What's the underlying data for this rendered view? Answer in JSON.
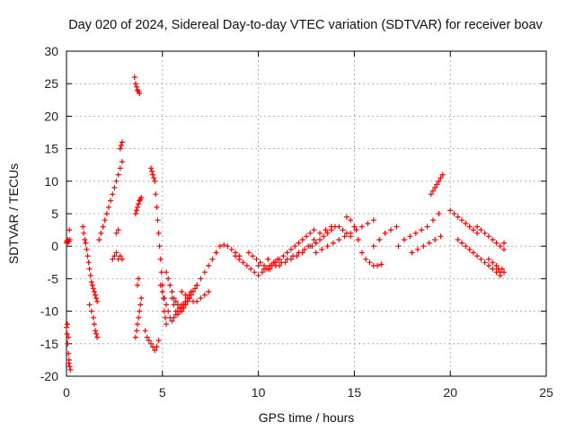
{
  "chart_data": {
    "type": "scatter",
    "title": "Day 020 of 2024, Sidereal Day-to-day VTEC variation (SDTVAR) for receiver boav",
    "xlabel": "GPS time / hours",
    "ylabel": "SDTVAR / TECUs",
    "xlim": [
      0,
      25
    ],
    "ylim": [
      -20,
      30
    ],
    "xticks": [
      0,
      5,
      10,
      15,
      20,
      25
    ],
    "yticks": [
      -20,
      -15,
      -10,
      -5,
      0,
      5,
      10,
      15,
      20,
      25,
      30
    ],
    "grid": true,
    "marker": "+",
    "color": "#ff0000",
    "series": [
      {
        "name": "boav",
        "x": [
          0.0,
          0.02,
          0.05,
          0.08,
          0.12,
          0.15,
          0.18,
          0.0,
          0.03,
          0.06,
          0.1,
          0.13,
          0.17,
          0.2,
          0.05,
          0.1,
          0.12,
          0.85,
          0.9,
          0.95,
          1.0,
          1.05,
          1.1,
          1.15,
          1.2,
          1.25,
          1.3,
          1.35,
          1.4,
          1.45,
          1.5,
          1.55,
          1.6,
          1.2,
          1.3,
          1.4,
          1.45,
          1.5,
          1.55,
          1.6,
          1.7,
          1.8,
          1.9,
          2.0,
          2.1,
          2.2,
          2.3,
          2.4,
          2.5,
          2.6,
          2.7,
          2.8,
          2.9,
          2.4,
          2.5,
          2.6,
          2.7,
          2.8,
          2.9,
          2.6,
          2.7,
          2.8,
          2.85,
          2.9,
          3.55,
          3.6,
          3.65,
          3.7,
          3.75,
          3.8,
          3.6,
          3.65,
          3.7,
          3.75,
          3.8,
          3.85,
          3.9,
          3.6,
          3.65,
          3.7,
          3.75,
          3.8,
          3.85,
          3.9,
          3.7,
          3.75,
          4.1,
          4.2,
          4.3,
          4.4,
          4.5,
          4.6,
          4.7,
          4.8,
          4.4,
          4.45,
          4.5,
          4.55,
          4.6,
          4.65,
          4.7,
          4.75,
          4.8,
          4.85,
          4.9,
          4.95,
          5.0,
          5.05,
          5.1,
          5.15,
          5.2,
          4.9,
          5.0,
          5.1,
          5.2,
          5.3,
          5.4,
          5.5,
          5.6,
          5.7,
          5.8,
          5.9,
          6.0,
          5.2,
          5.3,
          5.4,
          5.5,
          5.6,
          5.7,
          5.8,
          5.9,
          6.0,
          6.1,
          6.2,
          6.3,
          6.4,
          6.5,
          6.6,
          6.7,
          6.8,
          5.5,
          5.6,
          5.7,
          5.8,
          5.9,
          6.0,
          6.1,
          6.2,
          6.3,
          6.4,
          6.5,
          6.0,
          6.2,
          6.4,
          6.6,
          6.8,
          7.0,
          7.2,
          7.4,
          6.8,
          7.0,
          7.2,
          7.4,
          7.6,
          7.8,
          8.0,
          8.2,
          8.4,
          8.6,
          8.8,
          9.0,
          8.8,
          9.0,
          9.2,
          9.4,
          9.6,
          9.8,
          10.0,
          10.2,
          10.4,
          10.6,
          10.8,
          11.0,
          9.5,
          9.7,
          9.9,
          10.1,
          10.3,
          10.5,
          10.7,
          10.9,
          11.1,
          11.3,
          11.5,
          11.7,
          11.9,
          12.1,
          12.3,
          12.5,
          12.7,
          12.9,
          10.0,
          10.3,
          10.6,
          10.9,
          11.2,
          11.5,
          11.8,
          12.1,
          12.4,
          12.7,
          13.0,
          10.5,
          10.8,
          11.1,
          11.4,
          11.7,
          12.0,
          12.3,
          12.6,
          12.9,
          13.2,
          13.5,
          13.8,
          12.8,
          13.0,
          13.2,
          13.4,
          13.6,
          13.8,
          14.0,
          14.2,
          14.4,
          14.6,
          14.8,
          13.0,
          13.3,
          13.6,
          13.9,
          14.2,
          14.5,
          14.8,
          15.1,
          15.4,
          15.7,
          16.0,
          14.6,
          14.8,
          15.0,
          15.2,
          15.4,
          15.6,
          15.8,
          16.0,
          16.2,
          16.4,
          16.0,
          16.3,
          16.6,
          16.9,
          17.2,
          17.3,
          17.6,
          17.9,
          18.2,
          18.5,
          18.8,
          19.1,
          19.4,
          18.0,
          18.3,
          18.6,
          18.9,
          19.2,
          19.5,
          19.0,
          19.1,
          19.2,
          19.3,
          19.4,
          19.5,
          19.6,
          20.0,
          20.2,
          20.4,
          20.6,
          20.8,
          21.0,
          21.2,
          21.4,
          20.4,
          20.6,
          20.8,
          21.0,
          21.2,
          21.4,
          21.6,
          21.8,
          22.0,
          22.2,
          22.4,
          22.6,
          22.8,
          21.4,
          21.6,
          21.8,
          22.0,
          22.2,
          22.4,
          22.6,
          22.8,
          22.0,
          22.2,
          22.4,
          22.5,
          22.6,
          22.7,
          22.8
        ],
        "y": [
          0.5,
          0.8,
          0.6,
          1.0,
          0.7,
          2.5,
          1.0,
          -12.5,
          -13.5,
          -15,
          -16.5,
          -17.5,
          -18.5,
          -19,
          -12.0,
          -14.0,
          -18.0,
          3.0,
          2.0,
          1.0,
          0.5,
          -0.5,
          -1.5,
          -2.5,
          -3.5,
          -4.5,
          -5.5,
          -6.0,
          -6.5,
          -7.0,
          -7.5,
          -8.0,
          -8.5,
          -9,
          -10,
          -11,
          -12,
          -13,
          -13.5,
          -14,
          1,
          2,
          3,
          4,
          5,
          6,
          7,
          8,
          9,
          10,
          11,
          12,
          13,
          -2,
          -1.5,
          -1,
          -2,
          -1.5,
          -2,
          2,
          2.5,
          15,
          15.5,
          16,
          26,
          25,
          24.5,
          24,
          23.8,
          23.5,
          -14,
          -13,
          -12,
          -11,
          -10,
          -9,
          -8,
          5,
          5.5,
          6,
          6.5,
          7,
          7.2,
          7.5,
          -6,
          -5,
          -13,
          -14,
          -14.5,
          -15,
          -15.5,
          -16,
          -15.5,
          -14.5,
          12,
          11.5,
          11,
          10.5,
          10,
          8,
          6,
          4,
          2,
          0,
          -2,
          -4,
          -6,
          -8,
          -10,
          -11,
          -12,
          -6,
          -7,
          -8,
          -9,
          -10,
          -11,
          -11.5,
          -11,
          -10.5,
          -10,
          -9.5,
          -9,
          -4,
          -5,
          -6,
          -7,
          -8,
          -8.5,
          -9,
          -9.5,
          -10,
          -9.5,
          -9,
          -8.5,
          -8,
          -7.5,
          -7,
          -6.5,
          -6,
          -8,
          -9,
          -10,
          -10.5,
          -10,
          -9.5,
          -9,
          -8.5,
          -8,
          -7.5,
          -7,
          -7,
          -7.5,
          -8,
          -8.5,
          -8.5,
          -8,
          -7.5,
          -7,
          -6,
          -5,
          -4,
          -3,
          -2,
          -1,
          0,
          0.2,
          0,
          -0.5,
          -1,
          -1.5,
          -1.5,
          -2,
          -2.5,
          -3,
          -3.5,
          -4,
          -4.5,
          -4,
          -3.5,
          -3,
          -2.5,
          -2,
          -1,
          -1.5,
          -2,
          -2.5,
          -3,
          -3.5,
          -3,
          -2.5,
          -2,
          -1.5,
          -1,
          -0.5,
          0,
          0.5,
          1,
          1.5,
          2,
          2.5,
          -3,
          -3.5,
          -3.5,
          -3,
          -2.5,
          -2,
          -1.5,
          -1,
          -0.5,
          0,
          0.5,
          -2,
          -2.5,
          -3,
          -2.5,
          -2,
          -1.5,
          -1,
          0,
          1,
          2,
          2.5,
          3,
          0,
          0.5,
          1,
          1.5,
          2,
          2.5,
          3,
          3,
          2.5,
          2,
          1.5,
          -1,
          -0.5,
          0,
          0.5,
          1,
          1.5,
          2,
          2.5,
          3,
          3.5,
          4,
          4.5,
          4,
          3,
          1,
          -1,
          -2,
          -2.5,
          -3,
          -3,
          -2.8,
          0,
          1,
          2,
          2.5,
          3,
          0,
          1,
          1.5,
          2,
          2.5,
          3,
          4,
          5,
          -1,
          -0.5,
          0,
          0.5,
          1,
          1.5,
          8,
          8.5,
          9,
          9.5,
          10,
          10.5,
          11,
          5.5,
          5,
          4.5,
          4,
          3.5,
          3,
          2.5,
          2,
          1,
          0.5,
          0,
          -0.5,
          -1,
          -1.5,
          -2,
          -2.5,
          -3,
          -3.5,
          -4,
          -4.5,
          -4,
          3,
          2.5,
          2,
          1.5,
          1,
          0.5,
          0,
          -0.5,
          -2,
          -2.5,
          -3,
          -3.5,
          -4,
          -3.5,
          0.5
        ]
      }
    ]
  }
}
